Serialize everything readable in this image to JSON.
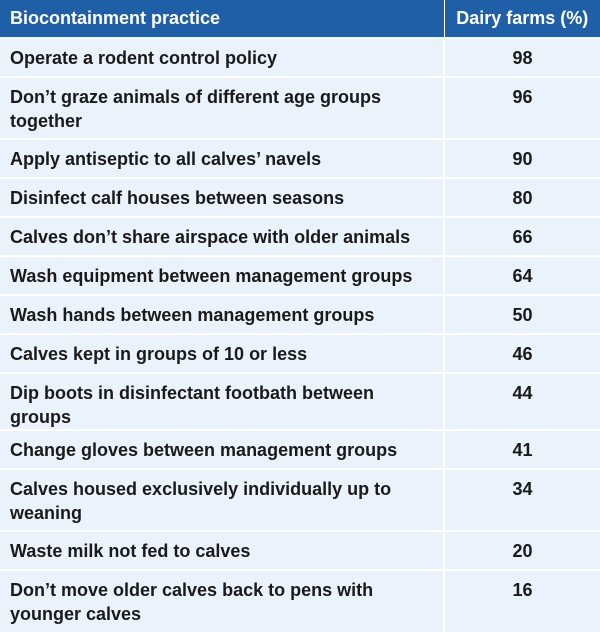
{
  "table": {
    "headers": {
      "practice": "Biocontainment practice",
      "value": "Dairy farms (%)"
    },
    "rows": [
      {
        "practice": "Operate a rodent control policy",
        "value": "98"
      },
      {
        "practice": "Don’t graze animals of different age groups together",
        "value": "96"
      },
      {
        "practice": "Apply antiseptic to all calves’ navels",
        "value": "90"
      },
      {
        "practice": "Disinfect calf houses between seasons",
        "value": "80"
      },
      {
        "practice": "Calves don’t share airspace with older animals",
        "value": "66"
      },
      {
        "practice": "Wash equipment between management groups",
        "value": "64"
      },
      {
        "practice": "Wash hands between management groups",
        "value": "50"
      },
      {
        "practice": "Calves kept in groups of 10 or less",
        "value": "46"
      },
      {
        "practice": "Dip boots in disinfectant footbath between groups",
        "value": "44"
      },
      {
        "practice": "Change gloves between management groups",
        "value": "41"
      },
      {
        "practice": "Calves housed exclusively individually up to weaning",
        "value": "34"
      },
      {
        "practice": "Waste milk not fed to calves",
        "value": "20"
      },
      {
        "practice": "Don’t move older calves back to pens with younger calves",
        "value": "16"
      }
    ]
  },
  "colors": {
    "header_bg": "#1f5fa8",
    "row_bg": "#eaf3fb",
    "text": "#1a1a1a"
  }
}
